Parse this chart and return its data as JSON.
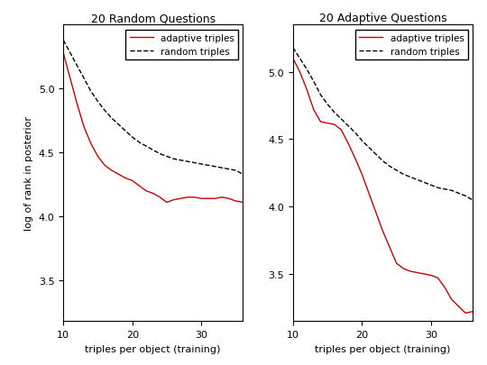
{
  "title_left": "20 Random Questions",
  "title_right": "20 Adaptive Questions",
  "xlabel": "triples per object (training)",
  "ylabel": "log of rank in posterior",
  "xlim": [
    10,
    36
  ],
  "ylim_left": [
    3.18,
    5.5
  ],
  "ylim_right": [
    3.15,
    5.35
  ],
  "yticks_left": [
    3.5,
    4.0,
    4.5,
    5.0
  ],
  "yticks_right": [
    3.5,
    4.0,
    4.5,
    5.0
  ],
  "xticks": [
    10,
    20,
    30
  ],
  "legend_labels": [
    "adaptive triples",
    "random triples"
  ],
  "left_adaptive_x": [
    10,
    11,
    12,
    13,
    14,
    15,
    16,
    17,
    18,
    19,
    20,
    21,
    22,
    23,
    24,
    25,
    26,
    27,
    28,
    29,
    30,
    31,
    32,
    33,
    34,
    35,
    36
  ],
  "left_adaptive_y": [
    5.28,
    5.08,
    4.88,
    4.7,
    4.57,
    4.47,
    4.4,
    4.36,
    4.33,
    4.3,
    4.28,
    4.24,
    4.2,
    4.18,
    4.15,
    4.11,
    4.13,
    4.14,
    4.15,
    4.15,
    4.14,
    4.14,
    4.14,
    4.15,
    4.14,
    4.12,
    4.11
  ],
  "left_random_x": [
    10,
    11,
    12,
    13,
    14,
    15,
    16,
    17,
    18,
    19,
    20,
    21,
    22,
    23,
    24,
    25,
    26,
    27,
    28,
    29,
    30,
    31,
    32,
    33,
    34,
    35,
    36
  ],
  "left_random_y": [
    5.38,
    5.28,
    5.18,
    5.08,
    4.98,
    4.9,
    4.83,
    4.77,
    4.72,
    4.67,
    4.62,
    4.58,
    4.55,
    4.52,
    4.49,
    4.47,
    4.45,
    4.44,
    4.43,
    4.42,
    4.41,
    4.4,
    4.39,
    4.38,
    4.37,
    4.36,
    4.33
  ],
  "right_adaptive_x": [
    10,
    11,
    12,
    13,
    14,
    15,
    16,
    17,
    18,
    19,
    20,
    21,
    22,
    23,
    24,
    25,
    26,
    27,
    28,
    29,
    30,
    31,
    32,
    33,
    34,
    35,
    36
  ],
  "right_adaptive_y": [
    5.1,
    5.0,
    4.87,
    4.72,
    4.63,
    4.62,
    4.61,
    4.57,
    4.47,
    4.36,
    4.24,
    4.1,
    3.96,
    3.82,
    3.7,
    3.58,
    3.54,
    3.52,
    3.51,
    3.5,
    3.49,
    3.47,
    3.4,
    3.31,
    3.26,
    3.21,
    3.22
  ],
  "right_random_x": [
    10,
    11,
    12,
    13,
    14,
    15,
    16,
    17,
    18,
    19,
    20,
    21,
    22,
    23,
    24,
    25,
    26,
    27,
    28,
    29,
    30,
    31,
    32,
    33,
    34,
    35,
    36
  ],
  "right_random_y": [
    5.18,
    5.1,
    5.02,
    4.93,
    4.83,
    4.76,
    4.7,
    4.65,
    4.6,
    4.55,
    4.49,
    4.44,
    4.39,
    4.34,
    4.3,
    4.27,
    4.24,
    4.22,
    4.2,
    4.18,
    4.16,
    4.14,
    4.13,
    4.12,
    4.1,
    4.08,
    4.05
  ],
  "adaptive_color": "#cc0000",
  "random_color": "#000000",
  "adaptive_lw": 1.0,
  "random_lw": 1.0,
  "bg_color": "#ffffff",
  "title_fontsize": 9,
  "label_fontsize": 8,
  "tick_fontsize": 8,
  "legend_fontsize": 7.5
}
